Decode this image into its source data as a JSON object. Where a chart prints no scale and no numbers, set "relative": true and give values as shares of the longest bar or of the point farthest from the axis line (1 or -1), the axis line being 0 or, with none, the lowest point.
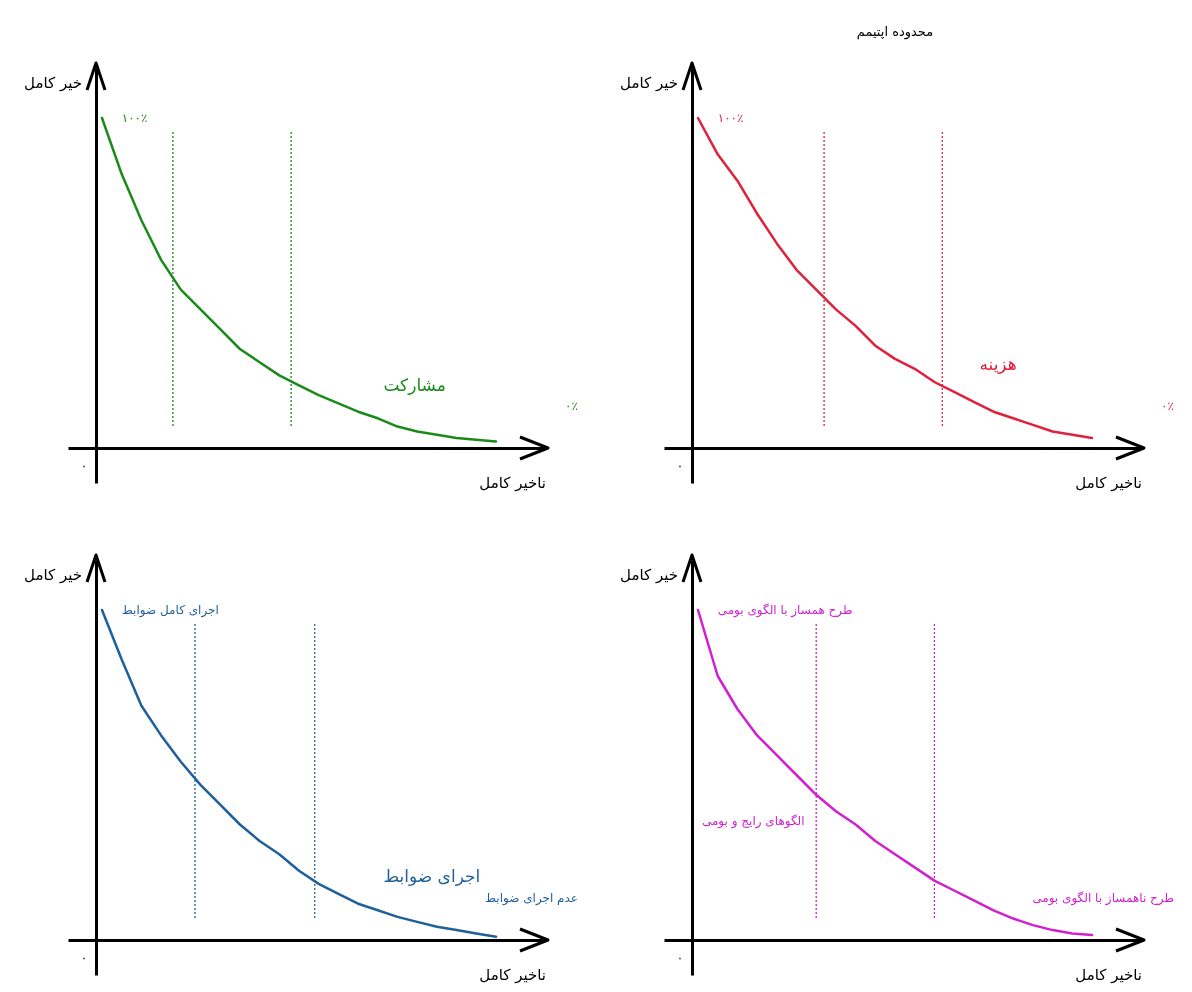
{
  "chart_data": [
    {
      "type": "line",
      "relative": true,
      "xlabel": "ناخیر کامل",
      "ylabel": "خیر کامل",
      "categories": [
        null,
        null,
        null,
        null,
        null,
        null,
        null,
        null,
        null,
        null,
        null,
        null,
        null,
        null,
        null,
        null,
        null,
        null,
        null,
        null,
        null
      ],
      "series": [
        {
          "name": "مشارکت",
          "color": "#1a8a1a",
          "values": [
            1,
            0.83,
            0.69,
            0.57,
            0.48,
            0.42,
            0.36,
            0.3,
            0.26,
            0.22,
            0.19,
            0.16,
            0.135,
            0.11,
            0.09,
            0.065,
            0.05,
            0.04,
            0.03,
            0.025,
            0.02
          ]
        }
      ],
      "annotations": [
        "۰",
        "۱۰۰٪",
        "۰٪"
      ]
    },
    {
      "type": "line",
      "relative": true,
      "title": "محدوده اپتیمم",
      "xlabel": "ناخیر کامل",
      "ylabel": "خیر کامل",
      "categories": [
        null,
        null,
        null,
        null,
        null,
        null,
        null,
        null,
        null,
        null,
        null,
        null,
        null,
        null,
        null,
        null,
        null,
        null,
        null,
        null,
        null
      ],
      "series": [
        {
          "name": "هزینه",
          "color": "#e0203c",
          "values": [
            1,
            0.89,
            0.81,
            0.71,
            0.62,
            0.54,
            0.48,
            0.42,
            0.37,
            0.31,
            0.27,
            0.24,
            0.2,
            0.17,
            0.14,
            0.11,
            0.09,
            0.07,
            0.05,
            0.04,
            0.03
          ]
        }
      ],
      "annotations": [
        "۰",
        "۱۰۰٪",
        "۰٪"
      ]
    },
    {
      "type": "line",
      "relative": true,
      "xlabel": "ناخیر کامل",
      "ylabel": "خیر کامل",
      "categories": [
        null,
        null,
        null,
        null,
        null,
        null,
        null,
        null,
        null,
        null,
        null,
        null,
        null,
        null,
        null,
        null,
        null,
        null,
        null,
        null,
        null
      ],
      "series": [
        {
          "name": "اجرای ضوابط",
          "color": "#1f5f9a",
          "values": [
            1,
            0.85,
            0.71,
            0.62,
            0.54,
            0.47,
            0.41,
            0.35,
            0.3,
            0.26,
            0.21,
            0.17,
            0.14,
            0.11,
            0.09,
            0.07,
            0.055,
            0.04,
            0.03,
            0.02,
            0.01
          ]
        }
      ],
      "annotations": [
        "۰",
        "اجرای کامل ضوابط",
        "عدم اجرای ضوابط"
      ]
    },
    {
      "type": "line",
      "relative": true,
      "xlabel": "ناخیر کامل",
      "ylabel": "خیر کامل",
      "categories": [
        null,
        null,
        null,
        null,
        null,
        null,
        null,
        null,
        null,
        null,
        null,
        null,
        null,
        null,
        null,
        null,
        null,
        null,
        null,
        null,
        null
      ],
      "series": [
        {
          "color": "#d020d0",
          "values": [
            1,
            0.8,
            0.7,
            0.62,
            0.56,
            0.5,
            0.44,
            0.39,
            0.35,
            0.3,
            0.26,
            0.22,
            0.18,
            0.15,
            0.12,
            0.09,
            0.065,
            0.045,
            0.03,
            0.02,
            0.015
          ]
        }
      ],
      "annotations": [
        "۰",
        "طرح همساز با الگوی بومی",
        "طرح ناهمساز با الگوی بومی",
        "الگوهای رایج و بومی"
      ]
    }
  ]
}
